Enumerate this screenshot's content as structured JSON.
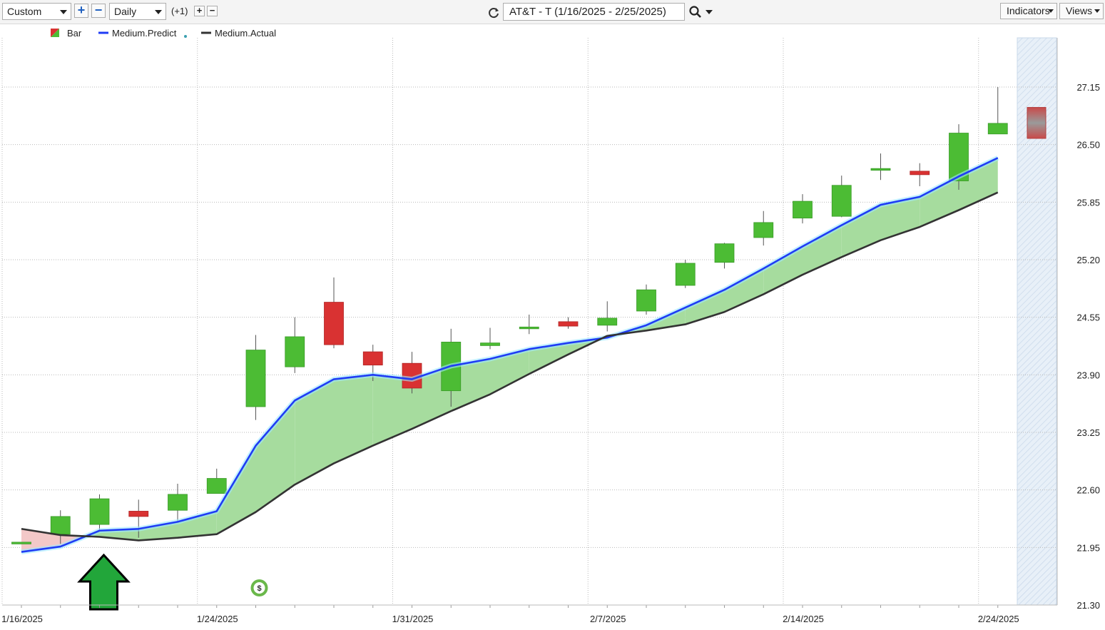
{
  "toolbar": {
    "range_mode": "Custom",
    "zoom_in_symbol": "+",
    "zoom_out_symbol": "−",
    "interval": "Daily",
    "offset_label": "(+1)",
    "offset_plus": "+",
    "offset_minus": "−",
    "refresh_icon": "refresh-icon",
    "symbol_title": "AT&T - T (1/16/2025 - 2/25/2025)",
    "search_icon": "magnifier-icon",
    "indicators_label": "Indicators",
    "views_label": "Views"
  },
  "colors": {
    "up": "#4cbc34",
    "down": "#d93232",
    "predict": "#1f3cf5",
    "actual": "#333333",
    "fill_positive": "#a6dc9e",
    "fill_negative": "#f3c8c8",
    "grid": "#b9b9b9",
    "forecast_zone": "#e3ecf6"
  },
  "chart_data": {
    "type": "candlestick",
    "x_dates": [
      "1/16/2025",
      "1/17/2025",
      "1/21/2025",
      "1/22/2025",
      "1/23/2025",
      "1/24/2025",
      "1/27/2025",
      "1/28/2025",
      "1/29/2025",
      "1/30/2025",
      "1/31/2025",
      "2/3/2025",
      "2/4/2025",
      "2/5/2025",
      "2/6/2025",
      "2/7/2025",
      "2/10/2025",
      "2/11/2025",
      "2/12/2025",
      "2/13/2025",
      "2/14/2025",
      "2/18/2025",
      "2/19/2025",
      "2/20/2025",
      "2/21/2025",
      "2/24/2025"
    ],
    "x_tick_labels": [
      "1/16/2025",
      "1/24/2025",
      "1/31/2025",
      "2/7/2025",
      "2/14/2025",
      "2/24/2025"
    ],
    "y_tick_labels": [
      "27.15",
      "26.50",
      "25.85",
      "25.20",
      "24.55",
      "23.90",
      "23.25",
      "22.60",
      "21.95",
      "21.30"
    ],
    "ylim": [
      21.3,
      27.65
    ],
    "legend": [
      {
        "name": "Bar",
        "icon": "up-down-bar-icon"
      },
      {
        "name": "Medium.Predict",
        "icon": "blue-line-icon"
      },
      {
        "name": "Medium.Actual",
        "icon": "dark-line-icon"
      }
    ],
    "ohlc": [
      {
        "open": 22.01,
        "high": 22.01,
        "low": 22.01,
        "close": 22.01
      },
      {
        "open": 22.1,
        "high": 22.37,
        "low": 21.99,
        "close": 22.3
      },
      {
        "open": 22.21,
        "high": 22.55,
        "low": 22.15,
        "close": 22.5
      },
      {
        "open": 22.36,
        "high": 22.49,
        "low": 22.06,
        "close": 22.3
      },
      {
        "open": 22.37,
        "high": 22.67,
        "low": 22.24,
        "close": 22.55
      },
      {
        "open": 22.56,
        "high": 22.84,
        "low": 22.56,
        "close": 22.73
      },
      {
        "open": 23.54,
        "high": 24.35,
        "low": 23.39,
        "close": 24.18
      },
      {
        "open": 23.99,
        "high": 24.55,
        "low": 23.92,
        "close": 24.33
      },
      {
        "open": 24.72,
        "high": 25.0,
        "low": 24.2,
        "close": 24.24
      },
      {
        "open": 24.16,
        "high": 24.24,
        "low": 23.83,
        "close": 24.01
      },
      {
        "open": 24.03,
        "high": 24.16,
        "low": 23.69,
        "close": 23.75
      },
      {
        "open": 23.72,
        "high": 24.42,
        "low": 23.54,
        "close": 24.27
      },
      {
        "open": 24.23,
        "high": 24.43,
        "low": 24.19,
        "close": 24.26
      },
      {
        "open": 24.44,
        "high": 24.58,
        "low": 24.36,
        "close": 24.44
      },
      {
        "open": 24.5,
        "high": 24.55,
        "low": 24.42,
        "close": 24.45
      },
      {
        "open": 24.46,
        "high": 24.73,
        "low": 24.39,
        "close": 24.54
      },
      {
        "open": 24.62,
        "high": 24.92,
        "low": 24.58,
        "close": 24.86
      },
      {
        "open": 24.91,
        "high": 25.2,
        "low": 24.88,
        "close": 25.16
      },
      {
        "open": 25.17,
        "high": 25.39,
        "low": 25.1,
        "close": 25.38
      },
      {
        "open": 25.45,
        "high": 25.75,
        "low": 25.36,
        "close": 25.62
      },
      {
        "open": 25.67,
        "high": 25.94,
        "low": 25.61,
        "close": 25.86
      },
      {
        "open": 25.69,
        "high": 26.15,
        "low": 25.68,
        "close": 26.04
      },
      {
        "open": 26.23,
        "high": 26.4,
        "low": 26.1,
        "close": 26.23
      },
      {
        "open": 26.2,
        "high": 26.29,
        "low": 26.03,
        "close": 26.16
      },
      {
        "open": 26.09,
        "high": 26.73,
        "low": 25.99,
        "close": 26.63
      },
      {
        "open": 26.62,
        "high": 27.15,
        "low": 26.62,
        "close": 26.74
      }
    ],
    "medium_predict": [
      21.9,
      21.96,
      22.14,
      22.16,
      22.24,
      22.36,
      23.1,
      23.61,
      23.85,
      23.9,
      23.85,
      24.0,
      24.08,
      24.19,
      24.26,
      24.32,
      24.46,
      24.66,
      24.86,
      25.1,
      25.35,
      25.59,
      25.82,
      25.91,
      26.14,
      26.35
    ],
    "medium_actual": [
      22.16,
      22.09,
      22.07,
      22.03,
      22.06,
      22.1,
      22.35,
      22.66,
      22.9,
      23.1,
      23.29,
      23.49,
      23.68,
      23.91,
      24.13,
      24.34,
      24.4,
      24.47,
      24.61,
      24.81,
      25.03,
      25.23,
      25.42,
      25.57,
      25.76,
      25.96
    ],
    "forecast": {
      "open": 26.92,
      "close": 26.57,
      "high": 26.92,
      "low": 26.57
    },
    "annotations": [
      {
        "type": "buy-arrow",
        "index": 2
      },
      {
        "type": "dividend",
        "index": 6,
        "symbol": "$"
      }
    ],
    "grid": true
  }
}
